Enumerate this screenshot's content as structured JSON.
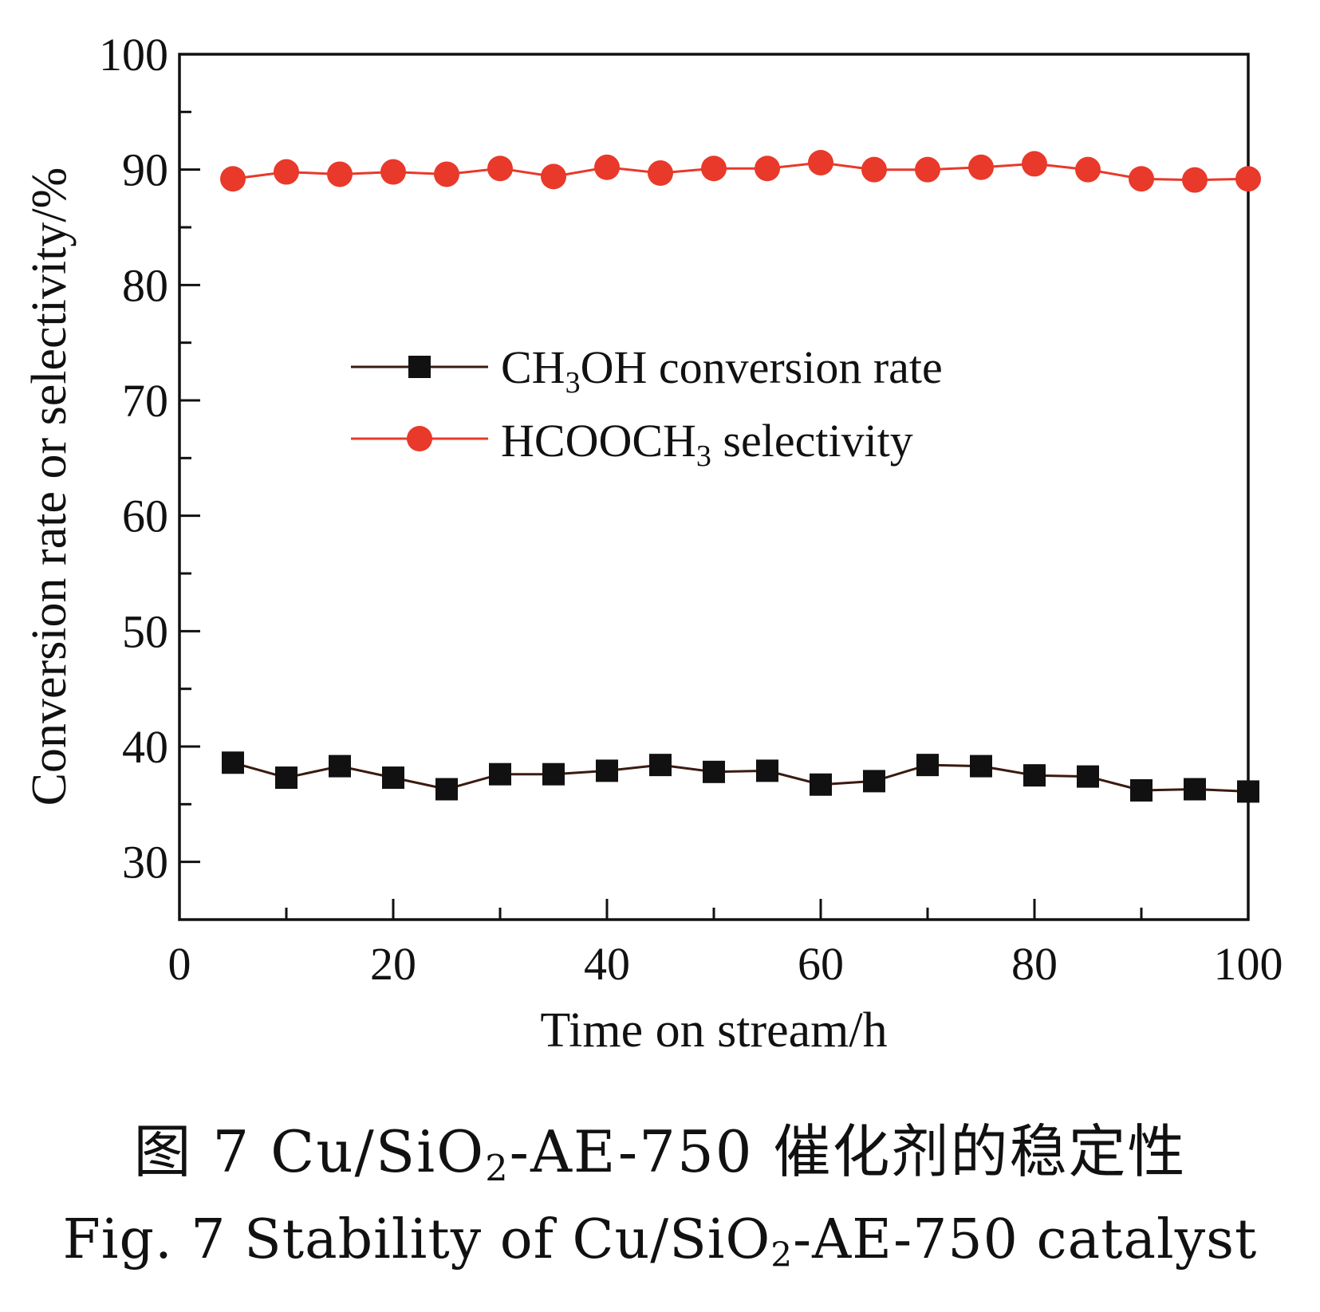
{
  "chart_data": {
    "type": "line",
    "xlabel": "Time on stream/h",
    "ylabel": "Conversion rate or selectivity/%",
    "xlim": [
      0,
      100
    ],
    "ylim": [
      25,
      100
    ],
    "xticks": [
      0,
      20,
      40,
      60,
      80,
      100
    ],
    "yticks": [
      30,
      40,
      50,
      60,
      70,
      80,
      90,
      100
    ],
    "legend_position": "center",
    "x": [
      5,
      10,
      15,
      20,
      25,
      30,
      35,
      40,
      45,
      50,
      55,
      60,
      65,
      70,
      75,
      80,
      85,
      90,
      95,
      100
    ],
    "series": [
      {
        "name": "CH3OH conversion rate",
        "name_main": "CH",
        "name_sub": "3",
        "name_rest": "OH conversion rate",
        "marker": "square",
        "color": "#111111",
        "line_color": "#3a1a10",
        "values": [
          38.6,
          37.3,
          38.3,
          37.3,
          36.3,
          37.6,
          37.6,
          37.9,
          38.4,
          37.8,
          37.9,
          36.7,
          37.0,
          38.4,
          38.3,
          37.5,
          37.4,
          36.2,
          36.3,
          36.1
        ]
      },
      {
        "name": "HCOOCH3 selectivity",
        "name_main": "HCOOCH",
        "name_sub": "3",
        "name_rest": " selectivity",
        "marker": "circle",
        "color": "#e8392a",
        "line_color": "#e8392a",
        "values": [
          89.2,
          89.8,
          89.6,
          89.8,
          89.6,
          90.1,
          89.4,
          90.2,
          89.7,
          90.1,
          90.1,
          90.6,
          90.0,
          90.0,
          90.2,
          90.5,
          90.0,
          89.2,
          89.1,
          89.2
        ]
      }
    ]
  },
  "caption": {
    "cn_prefix": "图 7  Cu/SiO",
    "cn_sub": "2",
    "cn_suffix": "-AE-750 催化剂的稳定性",
    "en_prefix": "Fig. 7  Stability of Cu/SiO",
    "en_sub": "2",
    "en_suffix": "-AE-750 catalyst"
  }
}
